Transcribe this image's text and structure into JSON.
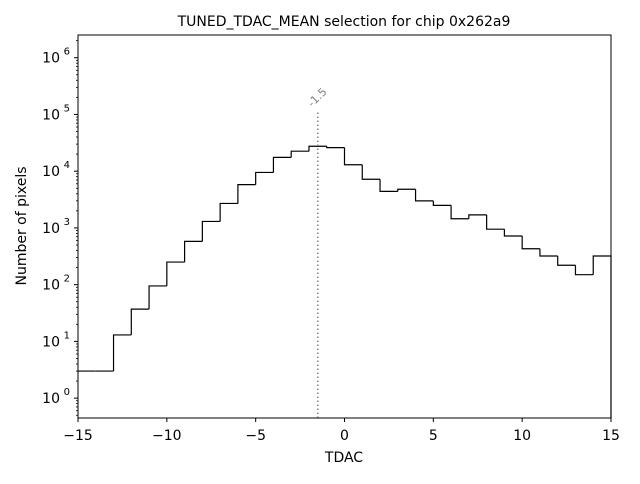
{
  "chart_data": {
    "type": "histogram",
    "title": "TUNED_TDAC_MEAN selection for chip 0x262a9",
    "xlabel": "TDAC",
    "ylabel": "Number of pixels",
    "yscale": "log",
    "xlim": [
      -15,
      15
    ],
    "ylim_log10": [
      -0.35,
      6.4
    ],
    "grid": false,
    "x_ticks": [
      {
        "value": -15,
        "label": "−15"
      },
      {
        "value": -10,
        "label": "−10"
      },
      {
        "value": -5,
        "label": "−5"
      },
      {
        "value": 0,
        "label": "0"
      },
      {
        "value": 5,
        "label": "5"
      },
      {
        "value": 10,
        "label": "10"
      },
      {
        "value": 15,
        "label": "15"
      }
    ],
    "y_ticks": [
      {
        "exp": 0,
        "base": "10",
        "sup": "0"
      },
      {
        "exp": 1,
        "base": "10",
        "sup": "1"
      },
      {
        "exp": 2,
        "base": "10",
        "sup": "2"
      },
      {
        "exp": 3,
        "base": "10",
        "sup": "3"
      },
      {
        "exp": 4,
        "base": "10",
        "sup": "4"
      },
      {
        "exp": 5,
        "base": "10",
        "sup": "5"
      },
      {
        "exp": 6,
        "base": "10",
        "sup": "6"
      }
    ],
    "bin_edges": [
      -15,
      -14,
      -13,
      -12,
      -11,
      -10,
      -9,
      -8,
      -7,
      -6,
      -5,
      -4,
      -3,
      -2,
      -1,
      0,
      1,
      2,
      3,
      4,
      5,
      6,
      7,
      8,
      9,
      10,
      11,
      12,
      13,
      14,
      15
    ],
    "counts": [
      3,
      3,
      13,
      37,
      95,
      250,
      580,
      1300,
      2700,
      5800,
      9500,
      17500,
      22500,
      27500,
      26000,
      13000,
      7200,
      4400,
      4800,
      3000,
      2500,
      1450,
      1700,
      950,
      720,
      430,
      320,
      220,
      150,
      320
    ],
    "marker": {
      "x": -1.5,
      "label": "-1.5",
      "top_value": 120000
    },
    "colors": {
      "line": "#000000",
      "marker": "#808080"
    }
  }
}
